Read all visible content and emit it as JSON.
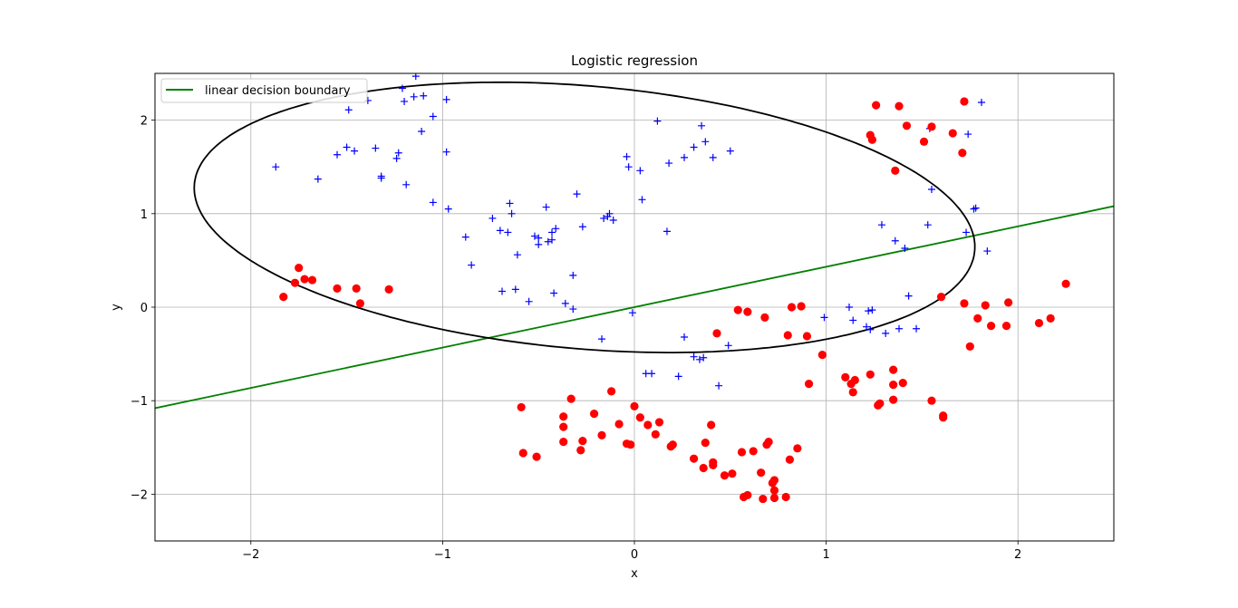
{
  "chart_data": {
    "type": "scatter",
    "title": "Logistic regression",
    "xlabel": "x",
    "ylabel": "y",
    "xlim": [
      -2.5,
      2.5
    ],
    "ylim": [
      -2.5,
      2.5
    ],
    "xticks": [
      -2,
      -1,
      0,
      1,
      2
    ],
    "yticks": [
      -2,
      -1,
      0,
      1,
      2
    ],
    "xtick_labels": [
      "−2",
      "−1",
      "0",
      "1",
      "2"
    ],
    "ytick_labels": [
      "−2",
      "−1",
      "0",
      "1",
      "2"
    ],
    "grid": true,
    "legend": {
      "position": "top-left",
      "entries": [
        "linear decision boundary"
      ]
    },
    "colors": {
      "plus": "#0000ff",
      "dot": "#ff0000",
      "linear": "#008000",
      "ellipse": "#000000"
    },
    "series": [
      {
        "marker": "plus",
        "color": "#0000ff",
        "points": [
          [
            -1.87,
            1.5
          ],
          [
            -1.65,
            1.37
          ],
          [
            -1.55,
            1.63
          ],
          [
            -1.5,
            1.71
          ],
          [
            -1.49,
            2.11
          ],
          [
            -1.46,
            1.67
          ],
          [
            -1.39,
            2.21
          ],
          [
            -1.35,
            1.7
          ],
          [
            -1.32,
            1.38
          ],
          [
            -1.32,
            1.4
          ],
          [
            -1.24,
            1.59
          ],
          [
            -1.23,
            1.65
          ],
          [
            -1.21,
            2.34
          ],
          [
            -1.2,
            2.2
          ],
          [
            -1.19,
            1.31
          ],
          [
            -1.15,
            2.25
          ],
          [
            -1.14,
            2.47
          ],
          [
            -1.11,
            1.88
          ],
          [
            -1.1,
            2.26
          ],
          [
            -1.05,
            2.04
          ],
          [
            -1.05,
            1.12
          ],
          [
            -0.98,
            2.22
          ],
          [
            -0.98,
            1.66
          ],
          [
            -0.97,
            1.05
          ],
          [
            -0.88,
            0.75
          ],
          [
            -0.85,
            0.45
          ],
          [
            -0.74,
            0.95
          ],
          [
            -0.7,
            0.82
          ],
          [
            -0.69,
            0.17
          ],
          [
            -0.66,
            0.8
          ],
          [
            -0.65,
            1.11
          ],
          [
            -0.64,
            1.0
          ],
          [
            -0.62,
            0.19
          ],
          [
            -0.61,
            0.56
          ],
          [
            -0.55,
            0.06
          ],
          [
            -0.52,
            0.76
          ],
          [
            -0.5,
            0.74
          ],
          [
            -0.5,
            0.67
          ],
          [
            -0.46,
            1.07
          ],
          [
            -0.45,
            0.7
          ],
          [
            -0.43,
            0.8
          ],
          [
            -0.43,
            0.72
          ],
          [
            -0.41,
            0.84
          ],
          [
            -0.42,
            0.15
          ],
          [
            -0.36,
            0.04
          ],
          [
            -0.32,
            0.34
          ],
          [
            -0.32,
            -0.02
          ],
          [
            -0.3,
            1.21
          ],
          [
            -0.27,
            0.86
          ],
          [
            -0.17,
            -0.34
          ],
          [
            -0.16,
            0.95
          ],
          [
            -0.14,
            0.97
          ],
          [
            -0.13,
            1.0
          ],
          [
            -0.11,
            0.93
          ],
          [
            -0.04,
            1.61
          ],
          [
            -0.03,
            1.5
          ],
          [
            -0.01,
            -0.06
          ],
          [
            0.03,
            1.46
          ],
          [
            0.04,
            1.15
          ],
          [
            0.06,
            -0.71
          ],
          [
            0.09,
            -0.71
          ],
          [
            0.12,
            1.99
          ],
          [
            0.17,
            0.81
          ],
          [
            0.18,
            1.54
          ],
          [
            0.23,
            -0.74
          ],
          [
            0.26,
            -0.32
          ],
          [
            0.26,
            1.6
          ],
          [
            0.31,
            -0.53
          ],
          [
            0.31,
            1.71
          ],
          [
            0.34,
            -0.56
          ],
          [
            0.35,
            1.94
          ],
          [
            0.36,
            -0.54
          ],
          [
            0.37,
            1.77
          ],
          [
            0.41,
            1.6
          ],
          [
            0.44,
            -0.84
          ],
          [
            0.49,
            -0.41
          ],
          [
            0.5,
            1.67
          ],
          [
            0.99,
            -0.11
          ],
          [
            1.12,
            0.0
          ],
          [
            1.14,
            -0.14
          ],
          [
            1.21,
            -0.21
          ],
          [
            1.22,
            -0.04
          ],
          [
            1.23,
            -0.24
          ],
          [
            1.24,
            -0.03
          ],
          [
            1.29,
            0.88
          ],
          [
            1.31,
            -0.28
          ],
          [
            1.36,
            0.71
          ],
          [
            1.38,
            -0.23
          ],
          [
            1.41,
            0.63
          ],
          [
            1.43,
            0.12
          ],
          [
            1.47,
            -0.23
          ],
          [
            1.53,
            0.88
          ],
          [
            1.55,
            1.26
          ],
          [
            1.54,
            1.91
          ],
          [
            1.73,
            0.8
          ],
          [
            1.74,
            1.85
          ],
          [
            1.77,
            1.05
          ],
          [
            1.78,
            1.06
          ],
          [
            1.81,
            2.19
          ],
          [
            1.84,
            0.6
          ]
        ]
      },
      {
        "marker": "dot",
        "color": "#ff0000",
        "points": [
          [
            -1.83,
            0.11
          ],
          [
            -1.77,
            0.26
          ],
          [
            -1.75,
            0.42
          ],
          [
            -1.72,
            0.3
          ],
          [
            -1.68,
            0.29
          ],
          [
            -1.55,
            0.2
          ],
          [
            -1.45,
            0.2
          ],
          [
            -1.43,
            0.04
          ],
          [
            -1.28,
            0.19
          ],
          [
            -0.59,
            -1.07
          ],
          [
            -0.58,
            -1.56
          ],
          [
            -0.51,
            -1.6
          ],
          [
            -0.37,
            -1.17
          ],
          [
            -0.37,
            -1.28
          ],
          [
            -0.37,
            -1.44
          ],
          [
            -0.33,
            -0.98
          ],
          [
            -0.28,
            -1.53
          ],
          [
            -0.27,
            -1.43
          ],
          [
            -0.21,
            -1.14
          ],
          [
            -0.17,
            -1.37
          ],
          [
            -0.12,
            -0.9
          ],
          [
            -0.08,
            -1.25
          ],
          [
            -0.04,
            -1.46
          ],
          [
            -0.02,
            -1.47
          ],
          [
            0.0,
            -1.06
          ],
          [
            0.03,
            -1.18
          ],
          [
            0.07,
            -1.26
          ],
          [
            0.11,
            -1.36
          ],
          [
            0.13,
            -1.23
          ],
          [
            0.19,
            -1.49
          ],
          [
            0.2,
            -1.47
          ],
          [
            0.31,
            -1.62
          ],
          [
            0.36,
            -1.72
          ],
          [
            0.37,
            -1.45
          ],
          [
            0.4,
            -1.26
          ],
          [
            0.41,
            -1.69
          ],
          [
            0.41,
            -1.66
          ],
          [
            0.43,
            -0.28
          ],
          [
            0.47,
            -1.8
          ],
          [
            0.51,
            -1.78
          ],
          [
            0.54,
            -0.03
          ],
          [
            0.56,
            -1.55
          ],
          [
            0.57,
            -2.03
          ],
          [
            0.59,
            -2.01
          ],
          [
            0.59,
            -0.05
          ],
          [
            0.62,
            -1.54
          ],
          [
            0.66,
            -1.77
          ],
          [
            0.67,
            -2.05
          ],
          [
            0.68,
            -0.11
          ],
          [
            0.69,
            -1.47
          ],
          [
            0.7,
            -1.44
          ],
          [
            0.72,
            -1.88
          ],
          [
            0.73,
            -1.85
          ],
          [
            0.73,
            -1.96
          ],
          [
            0.73,
            -2.04
          ],
          [
            0.79,
            -2.03
          ],
          [
            0.8,
            -0.3
          ],
          [
            0.81,
            -1.63
          ],
          [
            0.82,
            0.0
          ],
          [
            0.85,
            -1.51
          ],
          [
            0.87,
            0.01
          ],
          [
            0.9,
            -0.31
          ],
          [
            0.91,
            -0.82
          ],
          [
            0.98,
            -0.51
          ],
          [
            1.1,
            -0.75
          ],
          [
            1.13,
            -0.82
          ],
          [
            1.14,
            -0.91
          ],
          [
            1.15,
            -0.78
          ],
          [
            1.23,
            -0.72
          ],
          [
            1.23,
            1.84
          ],
          [
            1.24,
            1.79
          ],
          [
            1.26,
            2.16
          ],
          [
            1.27,
            -1.05
          ],
          [
            1.28,
            -1.03
          ],
          [
            1.35,
            -0.99
          ],
          [
            1.35,
            -0.83
          ],
          [
            1.35,
            -0.67
          ],
          [
            1.36,
            1.46
          ],
          [
            1.38,
            2.15
          ],
          [
            1.4,
            -0.81
          ],
          [
            1.42,
            1.94
          ],
          [
            1.51,
            1.77
          ],
          [
            1.55,
            1.93
          ],
          [
            1.55,
            -1.0
          ],
          [
            1.61,
            -1.16
          ],
          [
            1.61,
            -1.18
          ],
          [
            1.6,
            0.11
          ],
          [
            1.66,
            1.86
          ],
          [
            1.71,
            1.65
          ],
          [
            1.72,
            0.04
          ],
          [
            1.72,
            2.2
          ],
          [
            1.75,
            -0.42
          ],
          [
            1.79,
            -0.12
          ],
          [
            1.83,
            0.02
          ],
          [
            1.86,
            -0.2
          ],
          [
            1.94,
            -0.2
          ],
          [
            1.95,
            0.05
          ],
          [
            2.11,
            -0.17
          ],
          [
            2.17,
            -0.12
          ],
          [
            2.25,
            0.25
          ]
        ]
      }
    ],
    "lines": [
      {
        "name": "linear decision boundary",
        "color": "#008000",
        "x": [
          -2.5,
          2.5
        ],
        "y": [
          -1.08,
          1.08
        ]
      }
    ],
    "curves": [
      {
        "shape": "ellipse",
        "color": "#000000",
        "center": [
          -0.26,
          0.96
        ],
        "semi_axes": [
          2.08,
          1.38
        ],
        "rotation_deg": -16.0
      }
    ]
  }
}
